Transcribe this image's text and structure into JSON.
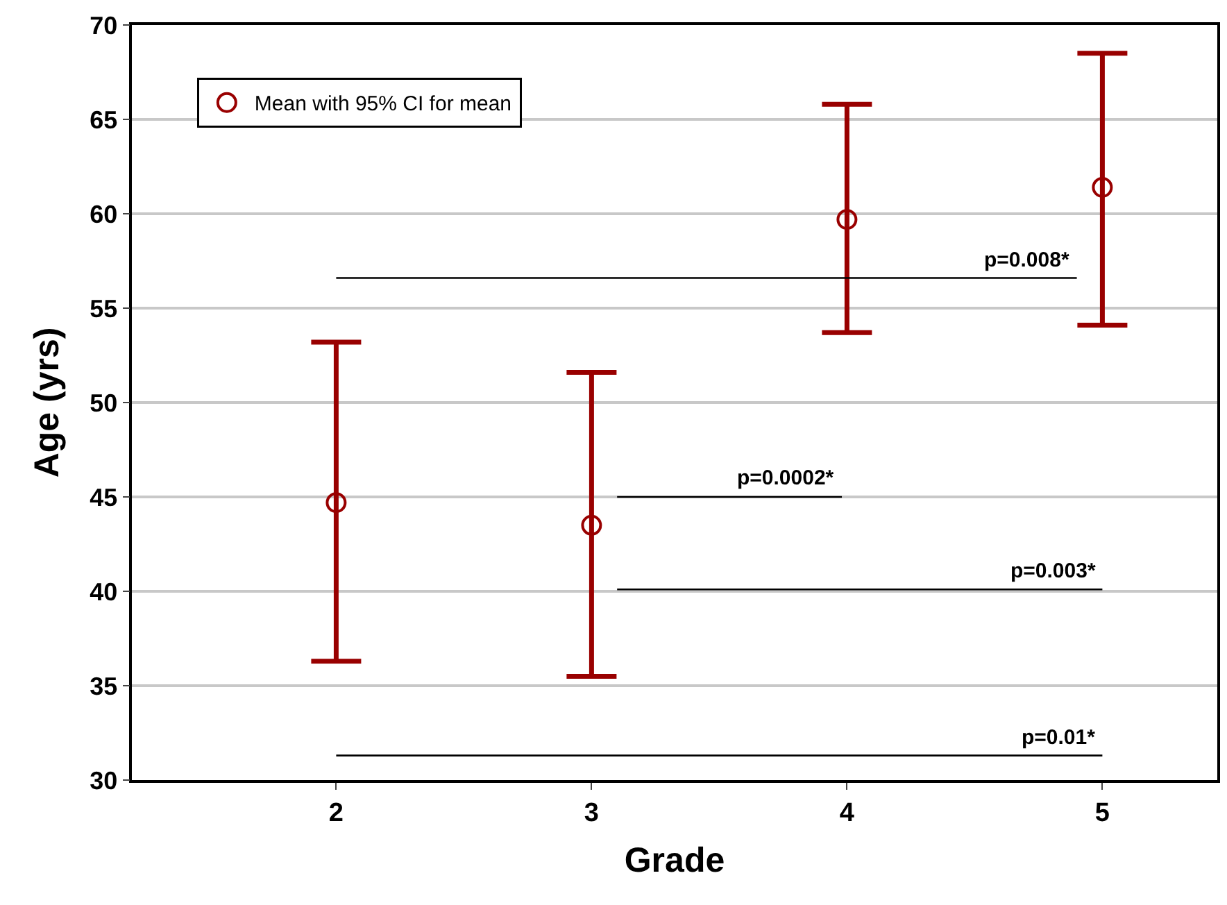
{
  "chart_data": {
    "type": "scatter",
    "xlabel": "Grade",
    "ylabel": "Age (yrs)",
    "categories": [
      "2",
      "3",
      "4",
      "5"
    ],
    "series": [
      {
        "name": "Mean with 95% CI for mean",
        "color": "#990000",
        "values": [
          44.7,
          43.5,
          59.7,
          61.4
        ],
        "errors": [
          [
            36.3,
            53.2
          ],
          [
            35.5,
            51.6
          ],
          [
            53.7,
            65.8
          ],
          [
            54.1,
            68.5
          ]
        ]
      }
    ],
    "ylim": [
      30,
      70
    ],
    "yticks": [
      30,
      35,
      40,
      45,
      50,
      55,
      60,
      65,
      70
    ],
    "grid": "y",
    "legend": "top left",
    "marker": "circle",
    "annotations": [
      "p=0.008*",
      "p=0.0002*",
      "p=0.003*",
      "p=0.01*"
    ]
  }
}
